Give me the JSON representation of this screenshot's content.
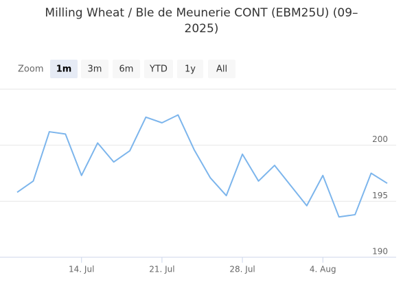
{
  "chart_data": {
    "type": "line",
    "title": "Milling Wheat / Ble de Meunerie CONT (EBM25U) (09–2025)",
    "range_selector": {
      "label": "Zoom",
      "buttons": [
        "1m",
        "3m",
        "6m",
        "YTD",
        "1y",
        "All"
      ],
      "selected": 0
    },
    "categories": [
      null,
      null,
      null,
      null,
      "14. Jul",
      null,
      null,
      null,
      null,
      "21. Jul",
      null,
      null,
      null,
      null,
      "28. Jul",
      null,
      null,
      null,
      null,
      "4. Aug",
      null,
      null,
      null,
      null
    ],
    "series": [
      {
        "name": "EBM25U",
        "color": "#7cb5ec",
        "values": [
          195.8,
          196.8,
          201.2,
          201.0,
          197.3,
          200.2,
          198.5,
          199.5,
          202.5,
          202.0,
          202.7,
          199.6,
          197.1,
          195.5,
          199.2,
          196.8,
          198.2,
          196.4,
          194.6,
          197.3,
          193.6,
          193.8,
          197.5,
          196.6
        ]
      }
    ],
    "ylim": [
      190,
      205
    ],
    "yticks": [
      190,
      195,
      200
    ],
    "grid": true
  }
}
